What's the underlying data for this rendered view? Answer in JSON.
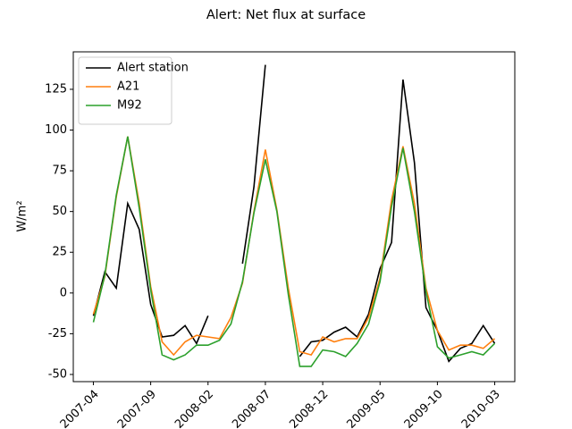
{
  "chart_data": {
    "type": "line",
    "title": "Alert: Net flux at surface",
    "ylabel": "W/m²",
    "categories": [
      "2007-04",
      null,
      null,
      null,
      null,
      "2007-09",
      null,
      null,
      null,
      null,
      "2008-02",
      null,
      null,
      null,
      null,
      "2008-07",
      null,
      null,
      null,
      null,
      "2008-12",
      null,
      null,
      null,
      null,
      "2009-05",
      null,
      null,
      null,
      null,
      "2009-10",
      null,
      null,
      null,
      null,
      "2010-03"
    ],
    "series": [
      {
        "name": "Alert station",
        "color": "#000000",
        "values": [
          -14,
          13,
          3,
          55,
          39,
          -7,
          -27,
          -26,
          -20,
          -31,
          -14,
          null,
          null,
          18,
          65,
          140,
          null,
          null,
          -39,
          -30,
          -29,
          -24,
          -21,
          -27,
          -13,
          15,
          31,
          131,
          80,
          -9,
          -23,
          -42,
          -34,
          -31,
          -20,
          -31
        ]
      },
      {
        "name": "A21",
        "color": "#ff7f0e",
        "values": [
          -13,
          10,
          59,
          96,
          55,
          4,
          -30,
          -38,
          -30,
          -26,
          -27,
          -28,
          -15,
          6,
          50,
          88,
          51,
          3,
          -36,
          -38,
          -27,
          -30,
          -28,
          -28,
          -15,
          9,
          57,
          90,
          55,
          3,
          -23,
          -35,
          -32,
          -32,
          -34,
          -28
        ]
      },
      {
        "name": "M92",
        "color": "#2ca02c",
        "values": [
          -18,
          11,
          60,
          96,
          52,
          2,
          -38,
          -41,
          -38,
          -32,
          -32,
          -29,
          -19,
          7,
          49,
          82,
          50,
          -1,
          -45,
          -45,
          -35,
          -36,
          -39,
          -31,
          -19,
          7,
          53,
          89,
          50,
          1,
          -33,
          -40,
          -38,
          -36,
          -38,
          -31
        ]
      }
    ],
    "xlim": [
      -1.75,
      36.75
    ],
    "ylim": [
      -54.4,
      148
    ],
    "yticks": [
      -50,
      -25,
      0,
      25,
      50,
      75,
      100,
      125
    ],
    "legend": "upper left"
  }
}
